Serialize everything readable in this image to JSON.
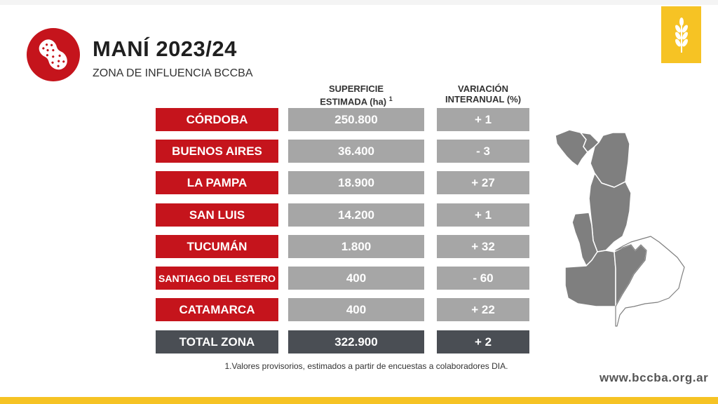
{
  "header": {
    "title": "MANÍ 2023/24",
    "subtitle": "ZONA DE INFLUENCIA BCCBA"
  },
  "columns": {
    "surface_line1": "SUPERFICIE",
    "surface_line2": "ESTIMADA (ha)",
    "surface_note": "1",
    "variation_line1": "VARIACIÓN",
    "variation_line2": "INTERANUAL (%)"
  },
  "rows": [
    {
      "province": "CÓRDOBA",
      "surface": "250.800",
      "variation": "+ 1"
    },
    {
      "province": "BUENOS AIRES",
      "surface": "36.400",
      "variation": "- 3"
    },
    {
      "province": "LA PAMPA",
      "surface": "18.900",
      "variation": "+ 27"
    },
    {
      "province": "SAN LUIS",
      "surface": "14.200",
      "variation": "+ 1"
    },
    {
      "province": "TUCUMÁN",
      "surface": "1.800",
      "variation": "+ 32"
    },
    {
      "province": "SANTIAGO DEL ESTERO",
      "surface": "400",
      "variation": "- 60"
    },
    {
      "province": "CATAMARCA",
      "surface": "400",
      "variation": "+ 22"
    }
  ],
  "total": {
    "label": "TOTAL ZONA",
    "surface": "322.900",
    "variation": "+ 2"
  },
  "footnote": "1.Valores provisorios, estimados a partir de encuestas a colaboradores DIA.",
  "website": "www.bccba.org.ar",
  "colors": {
    "province_red": "#c5141c",
    "value_gray": "#a6a6a6",
    "total_dark": "#4a4e54",
    "brand_yellow": "#f6c324",
    "map_gray": "#7f7f7f"
  },
  "icons": {
    "logo": "peanut-icon",
    "brand": "wheat-icon",
    "map": "argentina-region-map"
  }
}
